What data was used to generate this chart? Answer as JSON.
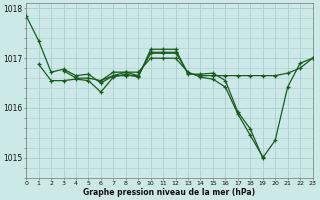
{
  "xlabel": "Graphe pression niveau de la mer (hPa)",
  "background_color": "#cce8e8",
  "grid_color": "#aacece",
  "line_color": "#1a5c1a",
  "xlim": [
    0,
    23
  ],
  "ylim": [
    1014.6,
    1018.1
  ],
  "yticks": [
    1015,
    1016,
    1017,
    1018
  ],
  "ytick_labels": [
    "1015",
    "1016",
    "1017",
    "1018"
  ],
  "xticks": [
    0,
    1,
    2,
    3,
    4,
    5,
    6,
    7,
    8,
    9,
    10,
    11,
    12,
    13,
    14,
    15,
    16,
    17,
    18,
    19,
    20,
    21,
    22,
    23
  ],
  "series": [
    {
      "x": [
        0,
        1,
        2,
        3,
        4,
        5,
        6,
        7,
        8,
        9,
        10,
        11,
        12,
        13,
        14,
        15,
        16,
        17,
        18,
        19,
        20,
        21,
        22,
        23
      ],
      "y": [
        1017.85,
        1017.35,
        1016.72,
        1016.78,
        1016.65,
        1016.68,
        1016.5,
        1016.65,
        1016.72,
        1016.65,
        1017.12,
        1017.12,
        1017.12,
        1016.7,
        1016.65,
        1016.65,
        1016.65,
        1016.65,
        1016.65,
        1016.65,
        1016.65,
        1016.7,
        1016.8,
        1017.0
      ]
    },
    {
      "x": [
        1,
        2,
        3,
        4,
        5,
        6,
        7,
        8,
        9,
        10,
        11,
        12,
        13,
        14,
        15,
        16,
        17,
        18,
        19,
        20,
        21,
        22,
        23
      ],
      "y": [
        1016.88,
        1016.55,
        1016.55,
        1016.58,
        1016.55,
        1016.32,
        1016.62,
        1016.68,
        1016.62,
        1017.18,
        1017.18,
        1017.18,
        1016.68,
        1016.68,
        1016.7,
        1016.55,
        1015.92,
        1015.58,
        1015.0,
        1015.35,
        1016.42,
        1016.9,
        1017.0
      ]
    },
    {
      "x": [
        3,
        4,
        5,
        6,
        7,
        8,
        9,
        10,
        11,
        12,
        13,
        14,
        15,
        16,
        17,
        18,
        19
      ],
      "y": [
        1016.75,
        1016.6,
        1016.6,
        1016.55,
        1016.72,
        1016.72,
        1016.72,
        1017.0,
        1017.0,
        1017.0,
        1016.72,
        1016.62,
        1016.58,
        1016.42,
        1015.88,
        1015.45,
        1015.02
      ]
    },
    {
      "x": [
        6,
        7,
        8,
        9,
        10,
        11,
        12
      ],
      "y": [
        1016.55,
        1016.65,
        1016.65,
        1016.65,
        1017.1,
        1017.1,
        1017.1
      ]
    }
  ]
}
